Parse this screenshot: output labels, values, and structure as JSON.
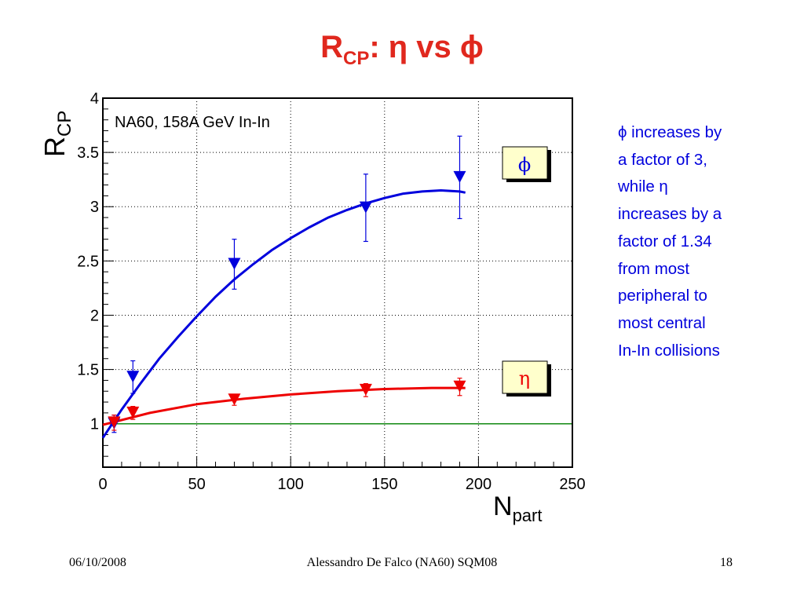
{
  "slide": {
    "title_main": "R",
    "title_sub": "CP",
    "title_rest": ": η vs ϕ"
  },
  "colors": {
    "title": "#e0281e",
    "phi": "#0000dd",
    "eta": "#ee0000",
    "unity_line": "#118811",
    "label_box": "#ffffcc"
  },
  "notes": {
    "lines": [
      "ϕ increases by",
      "a factor of 3,",
      "while η",
      "increases by a",
      "factor of 1.34",
      "from most",
      "peripheral to",
      "most central",
      "In-In collisions"
    ]
  },
  "footer": {
    "date": "06/10/2008",
    "author": "Alessandro De Falco (NA60) SQM08",
    "page": "18"
  },
  "chart_data": {
    "type": "scatter",
    "annotation": "NA60, 158A GeV In-In",
    "xlabel_main": "N",
    "xlabel_sub": "part",
    "ylabel_main": "R",
    "ylabel_sub": "CP",
    "xlim": [
      0,
      250
    ],
    "ylim": [
      0.6,
      4
    ],
    "xticks": [
      "0",
      "50",
      "100",
      "150",
      "200",
      "250"
    ],
    "yticks": [
      "1",
      "1.5",
      "2",
      "2.5",
      "3",
      "3.5",
      "4"
    ],
    "grid": true,
    "reference_line": 1,
    "series": [
      {
        "name": "ϕ",
        "color": "#0000dd",
        "x": [
          6,
          16,
          70,
          140,
          190
        ],
        "y": [
          1.0,
          1.43,
          2.47,
          2.99,
          3.27
        ],
        "err": [
          0.08,
          0.15,
          0.23,
          0.31,
          0.38
        ],
        "fit_x": [
          0,
          10,
          20,
          30,
          40,
          50,
          60,
          70,
          80,
          90,
          100,
          110,
          120,
          130,
          140,
          150,
          160,
          170,
          180,
          190,
          193
        ],
        "fit_y": [
          0.87,
          1.13,
          1.37,
          1.6,
          1.8,
          1.99,
          2.17,
          2.33,
          2.47,
          2.6,
          2.71,
          2.81,
          2.9,
          2.97,
          3.03,
          3.08,
          3.12,
          3.14,
          3.15,
          3.14,
          3.13
        ]
      },
      {
        "name": "η",
        "color": "#ee0000",
        "x": [
          6,
          16,
          70,
          140,
          190
        ],
        "y": [
          1.01,
          1.1,
          1.22,
          1.31,
          1.34
        ],
        "err": [
          0.07,
          0.06,
          0.05,
          0.06,
          0.08
        ],
        "fit_x": [
          0,
          25,
          50,
          75,
          100,
          125,
          150,
          175,
          193
        ],
        "fit_y": [
          0.99,
          1.1,
          1.18,
          1.23,
          1.27,
          1.3,
          1.32,
          1.33,
          1.33
        ]
      }
    ]
  }
}
